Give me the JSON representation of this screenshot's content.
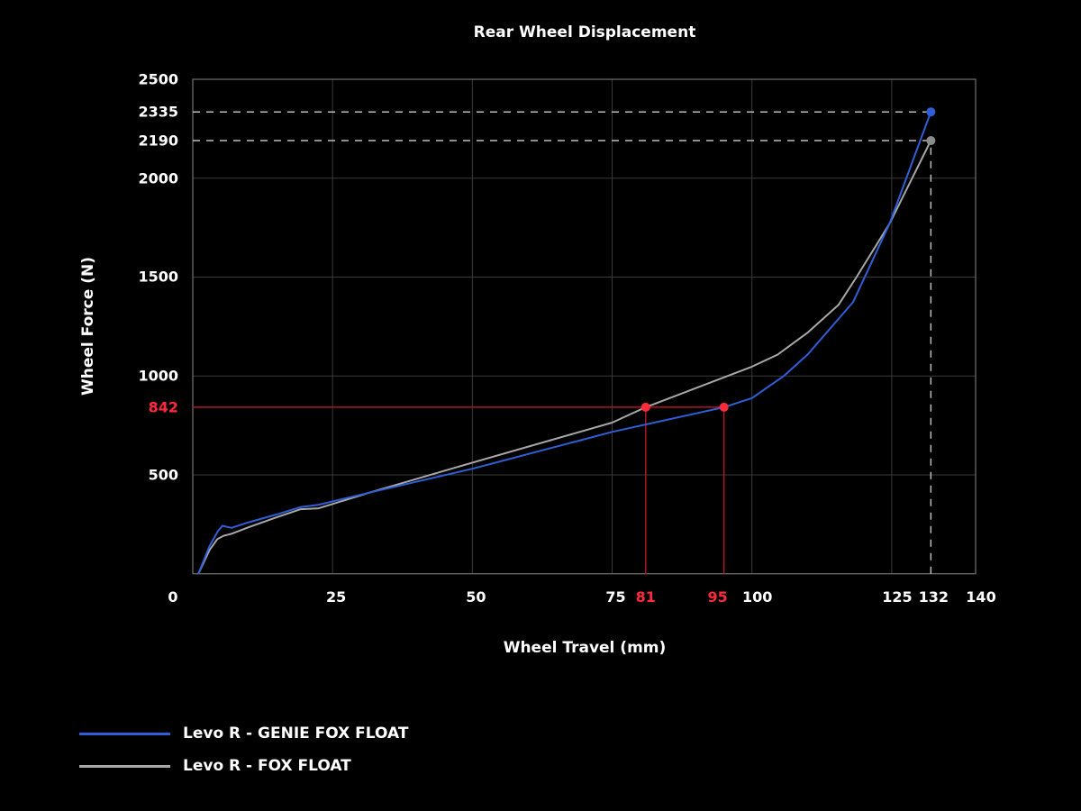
{
  "chart_data": {
    "type": "line",
    "title": "Rear Wheel Displacement",
    "xlabel": "Wheel Travel (mm)",
    "ylabel": "Wheel Force (N)",
    "xlim": [
      0,
      140
    ],
    "ylim": [
      0,
      2500
    ],
    "grid": true,
    "legend_position": "bottom-left",
    "x_ticks": [
      {
        "value": 0,
        "label": "0",
        "highlight": false,
        "gridline": false
      },
      {
        "value": 25,
        "label": "25",
        "highlight": false,
        "gridline": true
      },
      {
        "value": 50,
        "label": "50",
        "highlight": false,
        "gridline": true
      },
      {
        "value": 75,
        "label": "75",
        "highlight": false,
        "gridline": true
      },
      {
        "value": 81,
        "label": "81",
        "highlight": true,
        "gridline": false
      },
      {
        "value": 95,
        "label": "95",
        "highlight": true,
        "gridline": false
      },
      {
        "value": 100,
        "label": "100",
        "highlight": false,
        "gridline": true
      },
      {
        "value": 125,
        "label": "125",
        "highlight": false,
        "gridline": true
      },
      {
        "value": 132,
        "label": "132",
        "highlight": false,
        "gridline": false
      },
      {
        "value": 140,
        "label": "140",
        "highlight": false,
        "gridline": false
      }
    ],
    "y_ticks": [
      {
        "value": 500,
        "label": "500",
        "highlight": false,
        "gridline": true
      },
      {
        "value": 842,
        "label": "842",
        "highlight": true,
        "gridline": false
      },
      {
        "value": 1000,
        "label": "1000",
        "highlight": false,
        "gridline": true
      },
      {
        "value": 1500,
        "label": "1500",
        "highlight": false,
        "gridline": true
      },
      {
        "value": 2000,
        "label": "2000",
        "highlight": false,
        "gridline": true
      },
      {
        "value": 2190,
        "label": "2190",
        "highlight": false,
        "gridline": false
      },
      {
        "value": 2335,
        "label": "2335",
        "highlight": false,
        "gridline": false
      },
      {
        "value": 2500,
        "label": "2500",
        "highlight": false,
        "gridline": true
      }
    ],
    "series": [
      {
        "name": "Levo R - GENIE FOX FLOAT",
        "color": "#2f5fd6",
        "x": [
          1,
          3,
          4.5,
          5.3,
          6.9,
          10,
          15,
          19.3,
          22.5,
          31.6,
          50,
          75,
          95,
          100,
          105.8,
          110,
          118.1,
          124.6,
          132
        ],
        "y": [
          0,
          140,
          215,
          243,
          232,
          260,
          300,
          337,
          349,
          410,
          531,
          717,
          842,
          888,
          1002,
          1110,
          1374,
          1769,
          2335
        ]
      },
      {
        "name": "Levo R - FOX FLOAT",
        "color": "#a8a8a8",
        "x": [
          1,
          3,
          4.4,
          5.5,
          6.9,
          10,
          15,
          19.3,
          22.5,
          31.6,
          50,
          75,
          81,
          100,
          104.6,
          110,
          115.5,
          118.7,
          124.6,
          132
        ],
        "y": [
          0,
          120,
          175,
          192,
          202,
          235,
          285,
          326,
          331,
          410,
          562,
          764,
          842,
          1047,
          1108,
          1220,
          1360,
          1500,
          1769,
          2190
        ]
      }
    ],
    "annotations": [
      {
        "type": "hline",
        "y": 842,
        "x_from": 0,
        "x_to": 95,
        "color": "#b01524",
        "style": "solid"
      },
      {
        "type": "vline",
        "x": 81,
        "y_from": 0,
        "y_to": 842,
        "color": "#b01524",
        "style": "solid"
      },
      {
        "type": "vline",
        "x": 95,
        "y_from": 0,
        "y_to": 842,
        "color": "#b01524",
        "style": "solid"
      },
      {
        "type": "point",
        "x": 81,
        "y": 842,
        "color": "#ff2a3a"
      },
      {
        "type": "point",
        "x": 95,
        "y": 842,
        "color": "#ff2a3a"
      },
      {
        "type": "hline",
        "y": 2335,
        "x_from": 0,
        "x_to": 132,
        "color": "#bdbdbd",
        "style": "dashed"
      },
      {
        "type": "hline",
        "y": 2190,
        "x_from": 0,
        "x_to": 132,
        "color": "#bdbdbd",
        "style": "dashed"
      },
      {
        "type": "vline",
        "x": 132,
        "y_from": 0,
        "y_to": 2190,
        "color": "#bdbdbd",
        "style": "dashed"
      },
      {
        "type": "point",
        "x": 132,
        "y": 2335,
        "color": "#2f5fd6"
      },
      {
        "type": "point",
        "x": 132,
        "y": 2190,
        "color": "#8c8c8c"
      }
    ]
  },
  "legend": {
    "items": [
      {
        "label": "Levo R - GENIE FOX FLOAT",
        "color": "#2f5fd6"
      },
      {
        "label": "Levo R - FOX FLOAT",
        "color": "#a8a8a8"
      }
    ]
  }
}
